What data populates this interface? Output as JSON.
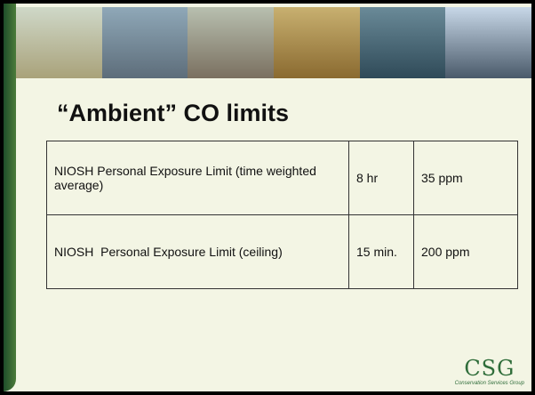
{
  "slide": {
    "title": "“Ambient” CO limits",
    "table": {
      "rows": [
        [
          "NIOSH Personal Exposure Limit (time weighted average)",
          "8 hr",
          "35 ppm"
        ],
        [
          "NIOSH  Personal Exposure Limit (ceiling)",
          "15 min.",
          "200 ppm"
        ]
      ]
    },
    "logo": {
      "mark": "CSG",
      "caption": "Conservation Services Group"
    }
  }
}
